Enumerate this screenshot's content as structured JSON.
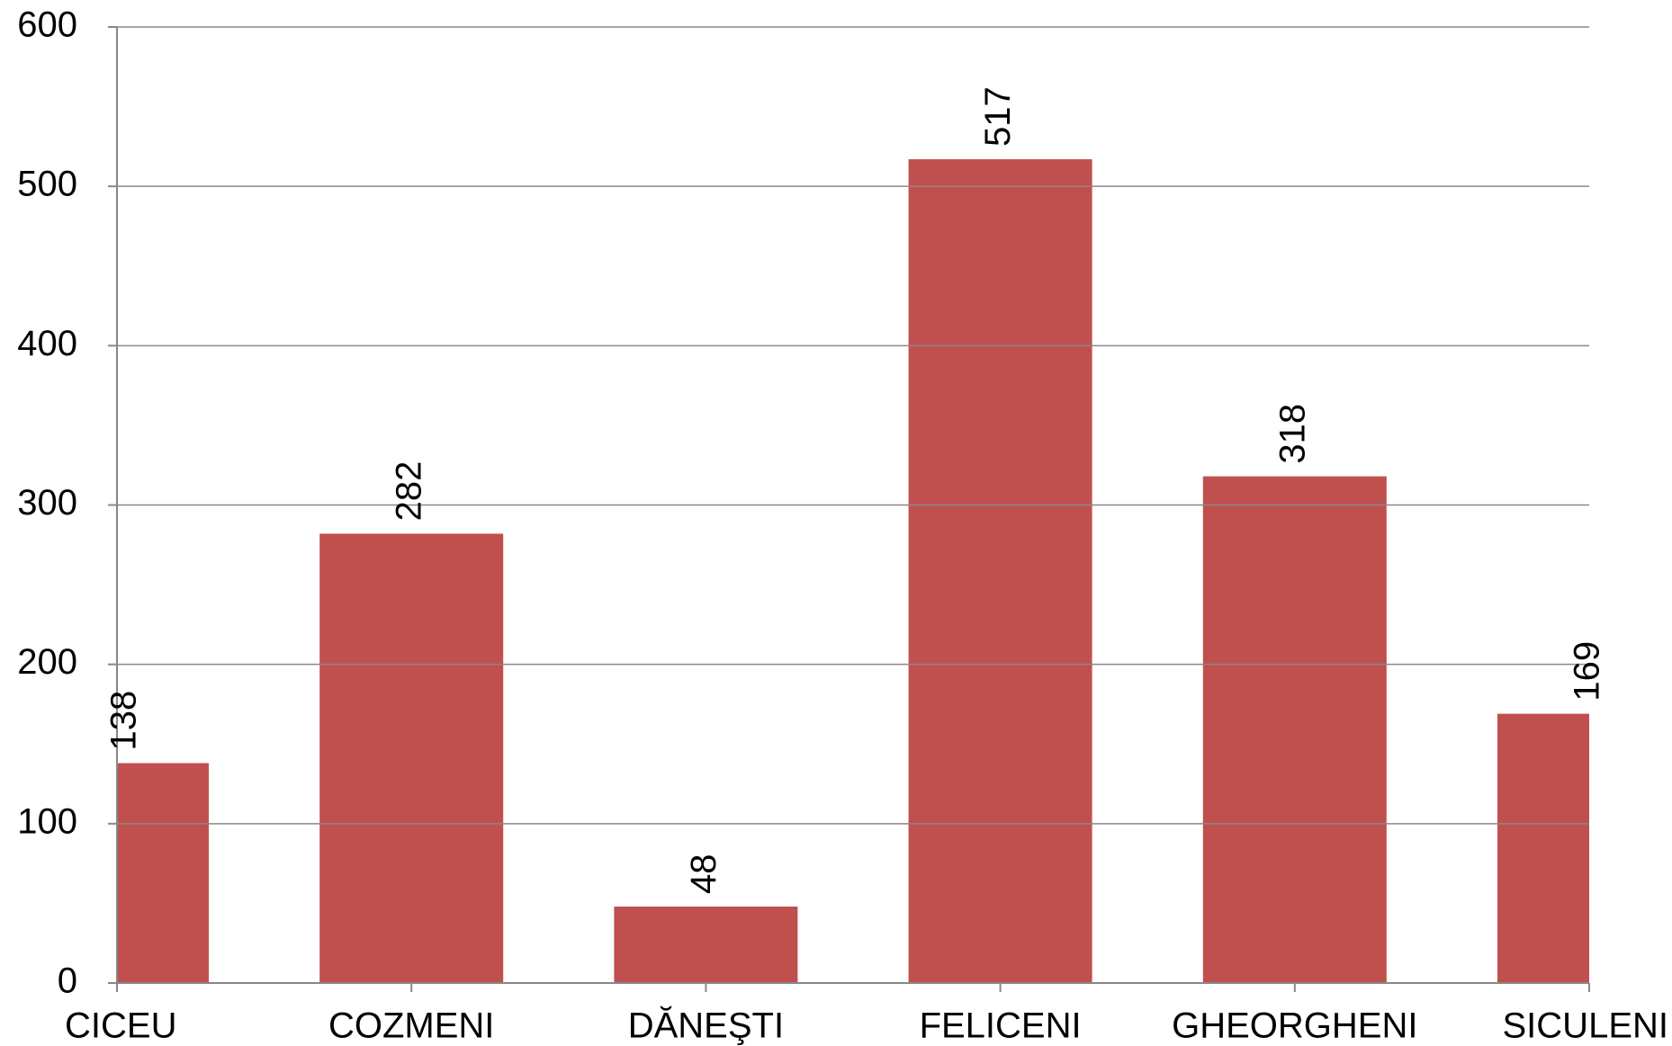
{
  "chart_data": {
    "type": "bar",
    "categories": [
      "CICEU",
      "COZMENI",
      "DĂNEŞTI",
      "FELICENI",
      "GHEORGHENI",
      "SICULENI"
    ],
    "values": [
      138,
      282,
      48,
      517,
      318,
      169
    ],
    "color": "#c0504d",
    "ylim": [
      0,
      600
    ],
    "yticks": [
      0,
      100,
      200,
      300,
      400,
      500,
      600
    ],
    "grid": true
  }
}
